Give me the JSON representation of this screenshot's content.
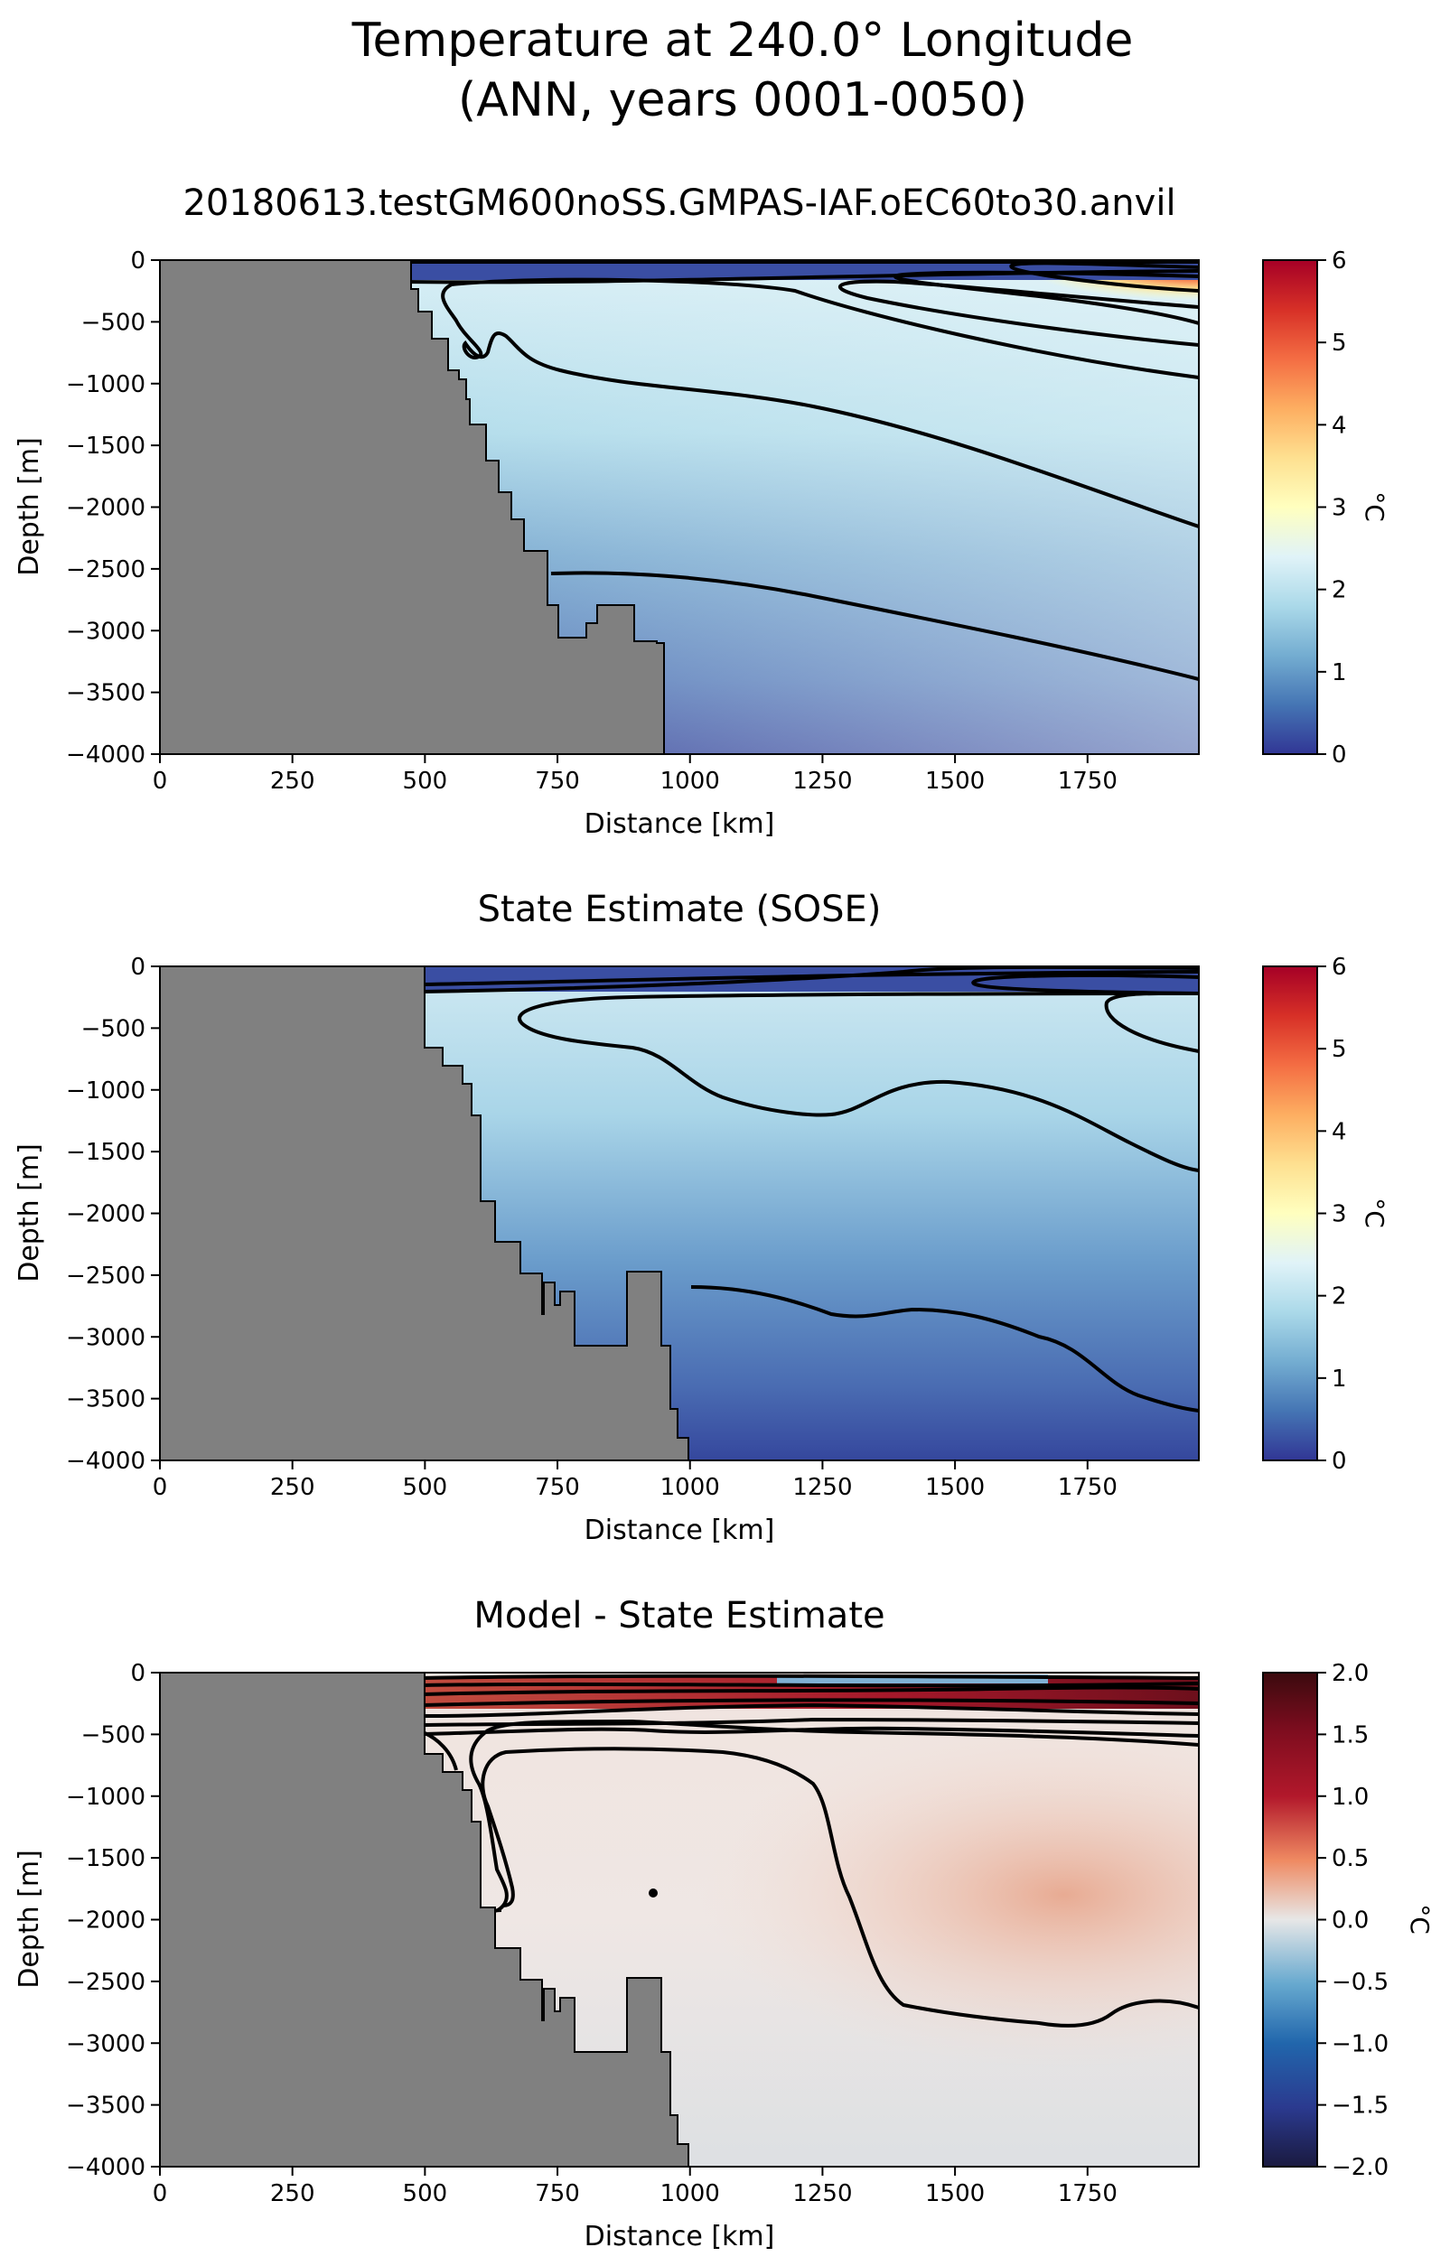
{
  "figure": {
    "title_line1": "Temperature at 240.0° Longitude",
    "title_line2": "(ANN, years 0001-0050)"
  },
  "chart_data": [
    {
      "type": "heatmap",
      "title": "20180613.testGM600noSS.GMPAS-IAF.oEC60to30.anvil",
      "xlabel": "Distance [km]",
      "ylabel": "Depth [m]",
      "xlim": [
        0,
        1960
      ],
      "ylim": [
        -4000,
        0
      ],
      "xticks": [
        0,
        250,
        500,
        750,
        1000,
        1250,
        1500,
        1750
      ],
      "yticks": [
        0,
        -500,
        -1000,
        -1500,
        -2000,
        -2500,
        -3000,
        -3500,
        -4000
      ],
      "colormap": "RdYlBu_r",
      "colorbar": {
        "label": "°C",
        "min": 0,
        "max": 6,
        "ticks": [
          0,
          1,
          2,
          3,
          4,
          5,
          6
        ]
      },
      "contour_levels": [
        0.5,
        1,
        1.5,
        2,
        4
      ],
      "land_color": "#808080",
      "bathymetry": [
        [
          0,
          0
        ],
        [
          455,
          0
        ],
        [
          455,
          -200
        ],
        [
          490,
          -200
        ],
        [
          490,
          -430
        ],
        [
          520,
          -430
        ],
        [
          520,
          -680
        ],
        [
          555,
          -680
        ],
        [
          555,
          -830
        ],
        [
          585,
          -830
        ],
        [
          585,
          -1000
        ],
        [
          600,
          -1000
        ],
        [
          600,
          -1080
        ],
        [
          615,
          -1080
        ],
        [
          615,
          -1350
        ],
        [
          655,
          -1350
        ],
        [
          655,
          -1650
        ],
        [
          670,
          -1650
        ],
        [
          670,
          -1900
        ],
        [
          695,
          -1900
        ],
        [
          695,
          -2100
        ],
        [
          715,
          -2100
        ],
        [
          715,
          -2350
        ],
        [
          745,
          -2350
        ],
        [
          745,
          -2750
        ],
        [
          770,
          -2750
        ],
        [
          770,
          -2880
        ],
        [
          805,
          -2880
        ],
        [
          805,
          -3080
        ],
        [
          820,
          -3080
        ],
        [
          820,
          -2880
        ],
        [
          835,
          -2880
        ],
        [
          835,
          -2800
        ],
        [
          885,
          -2800
        ],
        [
          885,
          -2880
        ],
        [
          920,
          -2880
        ],
        [
          920,
          -3080
        ],
        [
          955,
          -3080
        ],
        [
          955,
          -4000
        ],
        [
          0,
          -4000
        ]
      ]
    },
    {
      "type": "heatmap",
      "title": "State Estimate (SOSE)",
      "xlabel": "Distance [km]",
      "ylabel": "Depth [m]",
      "xlim": [
        0,
        1960
      ],
      "ylim": [
        -4000,
        0
      ],
      "xticks": [
        0,
        250,
        500,
        750,
        1000,
        1250,
        1500,
        1750
      ],
      "yticks": [
        0,
        -500,
        -1000,
        -1500,
        -2000,
        -2500,
        -3000,
        -3500,
        -4000
      ],
      "colormap": "RdYlBu_r",
      "colorbar": {
        "label": "°C",
        "min": 0,
        "max": 6,
        "ticks": [
          0,
          1,
          2,
          3,
          4,
          5,
          6
        ]
      },
      "contour_levels": [
        0.5,
        1,
        1.5,
        2,
        4
      ],
      "land_color": "#808080",
      "bathymetry": [
        [
          0,
          0
        ],
        [
          500,
          0
        ],
        [
          500,
          -680
        ],
        [
          530,
          -680
        ],
        [
          530,
          -820
        ],
        [
          570,
          -820
        ],
        [
          570,
          -960
        ],
        [
          600,
          -960
        ],
        [
          600,
          -1200
        ],
        [
          615,
          -1200
        ],
        [
          615,
          -1800
        ],
        [
          640,
          -1800
        ],
        [
          640,
          -2050
        ],
        [
          685,
          -2050
        ],
        [
          685,
          -2300
        ],
        [
          720,
          -2300
        ],
        [
          720,
          -2580
        ],
        [
          735,
          -2580
        ],
        [
          735,
          -2300
        ],
        [
          760,
          -2300
        ],
        [
          760,
          -2550
        ],
        [
          775,
          -2550
        ],
        [
          775,
          -2450
        ],
        [
          795,
          -2450
        ],
        [
          795,
          -2820
        ],
        [
          880,
          -2820
        ],
        [
          880,
          -2320
        ],
        [
          945,
          -2320
        ],
        [
          945,
          -2820
        ],
        [
          960,
          -2820
        ],
        [
          960,
          -3800
        ],
        [
          1000,
          -3800
        ],
        [
          1000,
          -4000
        ],
        [
          0,
          -4000
        ]
      ]
    },
    {
      "type": "heatmap",
      "title": "Model - State Estimate",
      "xlabel": "Distance [km]",
      "ylabel": "Depth [m]",
      "xlim": [
        0,
        1960
      ],
      "ylim": [
        -4000,
        0
      ],
      "xticks": [
        0,
        250,
        500,
        750,
        1000,
        1250,
        1500,
        1750
      ],
      "yticks": [
        0,
        -500,
        -1000,
        -1500,
        -2000,
        -2500,
        -3000,
        -3500,
        -4000
      ],
      "colormap": "RdBu_r",
      "colorbar": {
        "label": "°C",
        "min": -2,
        "max": 2,
        "ticks": [
          -2.0,
          -1.5,
          -1.0,
          -0.5,
          0.0,
          0.5,
          1.0,
          1.5,
          2.0
        ]
      },
      "contour_levels": [
        0,
        0.25,
        0.5,
        1,
        2
      ],
      "land_color": "#808080",
      "bathymetry": [
        [
          0,
          0
        ],
        [
          500,
          0
        ],
        [
          500,
          -680
        ],
        [
          530,
          -680
        ],
        [
          530,
          -820
        ],
        [
          570,
          -820
        ],
        [
          570,
          -960
        ],
        [
          600,
          -960
        ],
        [
          600,
          -1200
        ],
        [
          615,
          -1200
        ],
        [
          615,
          -1800
        ],
        [
          640,
          -1800
        ],
        [
          640,
          -2050
        ],
        [
          685,
          -2050
        ],
        [
          685,
          -2300
        ],
        [
          720,
          -2300
        ],
        [
          720,
          -2580
        ],
        [
          735,
          -2580
        ],
        [
          735,
          -2300
        ],
        [
          760,
          -2300
        ],
        [
          760,
          -2550
        ],
        [
          775,
          -2550
        ],
        [
          775,
          -2450
        ],
        [
          795,
          -2450
        ],
        [
          795,
          -2820
        ],
        [
          880,
          -2820
        ],
        [
          880,
          -2320
        ],
        [
          945,
          -2320
        ],
        [
          945,
          -2820
        ],
        [
          960,
          -2820
        ],
        [
          960,
          -3800
        ],
        [
          1000,
          -3800
        ],
        [
          1000,
          -4000
        ],
        [
          0,
          -4000
        ]
      ]
    }
  ]
}
